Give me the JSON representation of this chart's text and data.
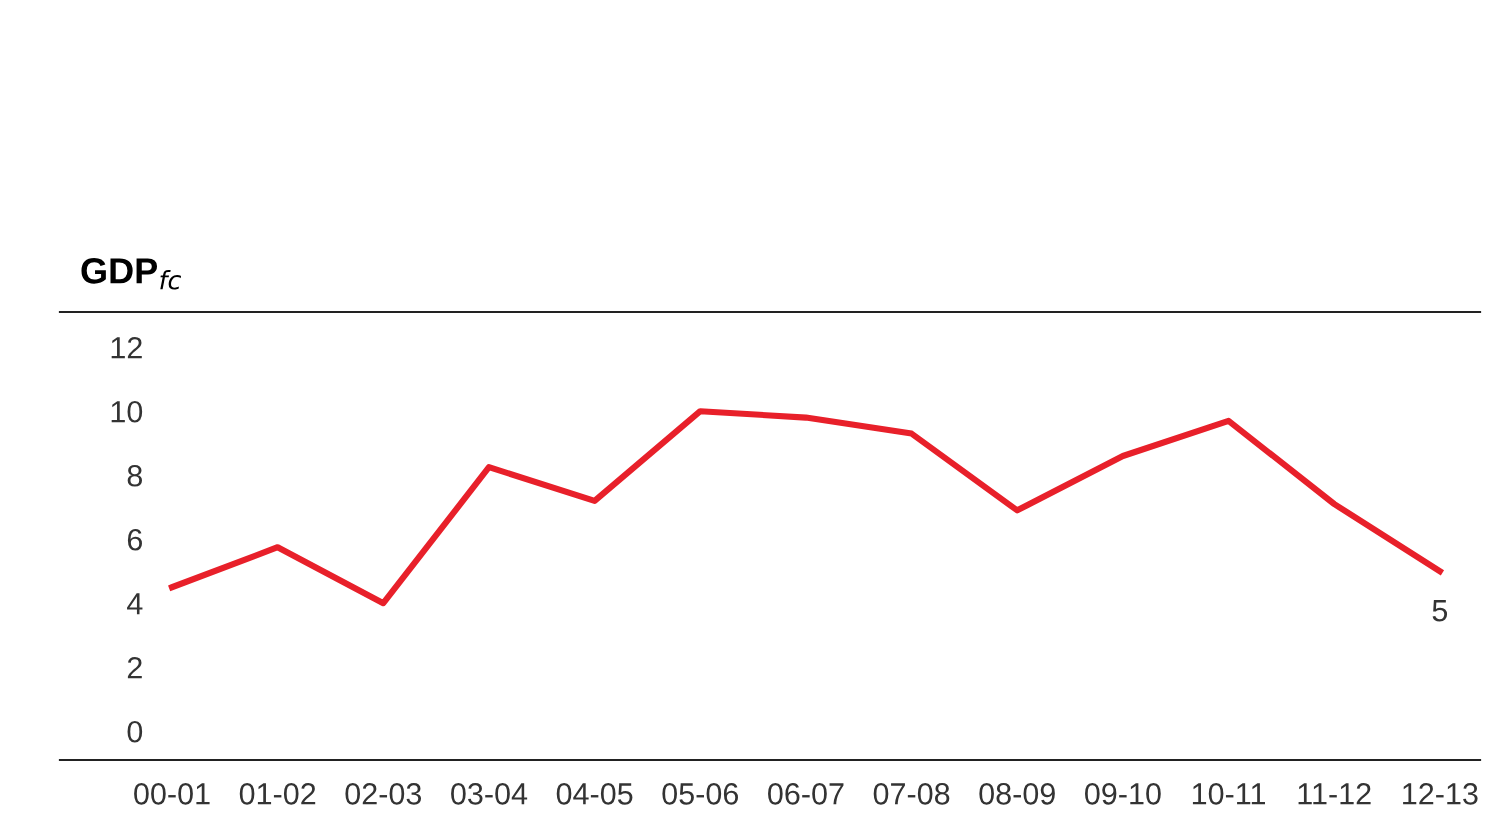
{
  "chart_data": {
    "type": "line",
    "ylabel": "GDP$_{fc}$",
    "categories": [
      "00-01",
      "01-02",
      "02-03",
      "03-04",
      "04-05",
      "05-06",
      "06-07",
      "07-08",
      "08-09",
      "09-10",
      "10-11",
      "11-12",
      "12-13"
    ],
    "series": [
      {
        "color": "#e8202a",
        "values": [
          4.5,
          5.75,
          4.0,
          8.25,
          7.2,
          10.0,
          9.8,
          9.3,
          6.9,
          8.6,
          9.7,
          7.1,
          5
        ],
        "value_labels": [
          null,
          null,
          null,
          null,
          null,
          null,
          null,
          null,
          null,
          null,
          null,
          null,
          "5"
        ]
      }
    ],
    "ylim": [
      -0.9,
      13.1
    ],
    "yticks": [
      0,
      2,
      4,
      6,
      8,
      10,
      12
    ],
    "grid": false,
    "marker": "none",
    "line_style": "solid"
  }
}
